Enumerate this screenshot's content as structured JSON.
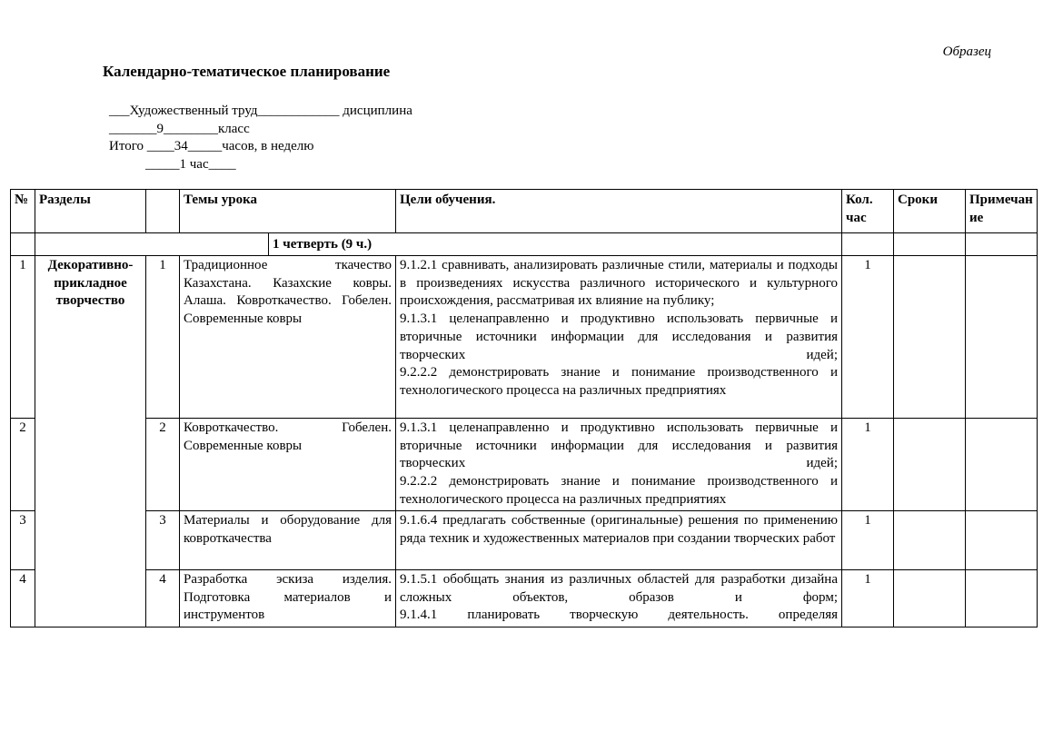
{
  "page": {
    "watermark": "Образец",
    "title": "Календарно-тематическое планирование",
    "meta_lines": [
      "___Художественный труд____________ дисциплина",
      "_______9________класс",
      "Итого ____34_____часов, в неделю",
      "_____1 час____"
    ]
  },
  "table": {
    "headers": {
      "num": "№",
      "section": "Разделы",
      "sub_num": "",
      "topic": "Темы урока",
      "goals": "Цели обучения.",
      "hours": "Кол. час",
      "dates": "Сроки",
      "notes": "Примечание"
    },
    "quarter_row": {
      "label": "1 четверть (9 ч.)"
    },
    "section": "Декоративно-прикладное творчество",
    "rows": [
      {
        "num": "1",
        "sub_num": "1",
        "topic": "Традиционное ткачество Казахстана. Казахские ковры. Алаша. Ковроткачество. Гобелен. Современные ковры",
        "goals": [
          {
            "text": "9.1.2.1 сравнивать, анализировать различные стили, материалы и подходы в произведениях искусства различного исторического и культурного происхождения, рассматривая их влияние на публику;",
            "stretch": false
          },
          {
            "text": "9.1.3.1 целенаправленно и продуктивно использовать первичные и вторичные источники информации для исследования и развития творческих идей;",
            "stretch": true
          },
          {
            "text": "9.2.2.2 демонстрировать знание и понимание производственного и технологического процесса на различных предприятиях",
            "stretch": false
          }
        ],
        "hours": "1",
        "dates": "",
        "notes": ""
      },
      {
        "num": "2",
        "sub_num": "2",
        "topic": "Ковроткачество. Гобелен. Современные ковры",
        "goals": [
          {
            "text": "9.1.3.1 целенаправленно и продуктивно использовать первичные и вторичные источники информации для исследования и развития творческих идей;",
            "stretch": true
          },
          {
            "text": "9.2.2.2 демонстрировать знание и понимание производственного и технологического процесса на различных предприятиях",
            "stretch": false
          }
        ],
        "hours": "1",
        "dates": "",
        "notes": ""
      },
      {
        "num": "3",
        "sub_num": "3",
        "topic": "Материалы и оборудование для ковроткачества",
        "goals": [
          {
            "text": "9.1.6.4 предлагать собственные (оригинальные) решения по применению ряда техник и художественных материалов при создании творческих работ",
            "stretch": false
          }
        ],
        "hours": "1",
        "dates": "",
        "notes": ""
      },
      {
        "num": "4",
        "sub_num": "4",
        "topic": "Разработка эскиза изделия. Подготовка материалов и инструментов",
        "goals": [
          {
            "text": "9.1.5.1 обобщать знания из различных областей для разработки дизайна сложных объектов, образов и форм;",
            "stretch": true
          },
          {
            "text": "9.1.4.1 планировать творческую деятельность. определяя",
            "stretch": true
          }
        ],
        "hours": "1",
        "dates": "",
        "notes": ""
      }
    ]
  }
}
